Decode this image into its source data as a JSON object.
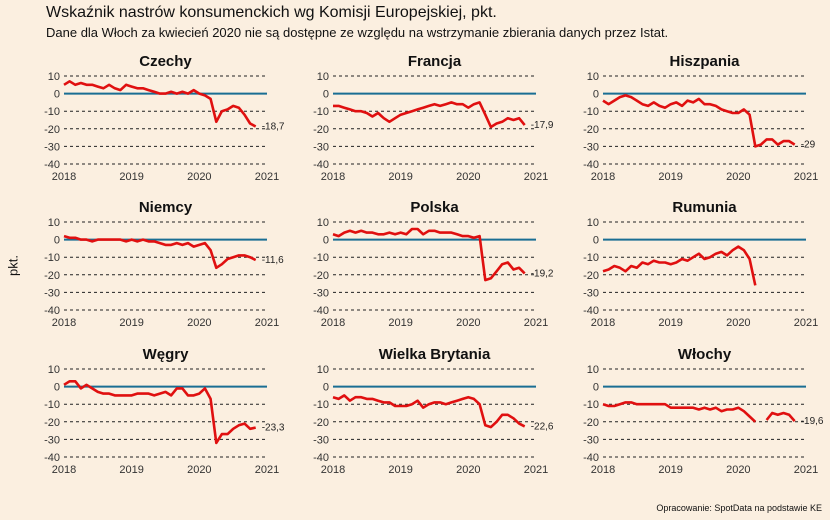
{
  "title": "Wskaźnik nastrów konsumenckich wg Komisji Europejskiej, pkt.",
  "subtitle": "Dane dla Włoch za kwiecień 2020 nie są dostępne ze względu na wstrzymanie zbierania danych przez Istat.",
  "ylabel": "pkt.",
  "source": "Opracowanie: SpotData na podstawie KE",
  "colors": {
    "line": "#e01010",
    "zero": "#1a6e93",
    "grid": "#222222",
    "background": "#fbefe0"
  },
  "chart_data": {
    "type": "line",
    "facets": "3x3",
    "xlim": [
      2018,
      2021
    ],
    "xticks": [
      "2018",
      "2019",
      "2020",
      "2021"
    ],
    "ylim": [
      -40,
      10
    ],
    "yticks": [
      "10",
      "0",
      "-10",
      "-20",
      "-30",
      "-40"
    ],
    "series": [
      {
        "name": "Czechy",
        "end_label": "-18,7",
        "x": [
          2018.0,
          2018.083,
          2018.167,
          2018.25,
          2018.333,
          2018.417,
          2018.5,
          2018.583,
          2018.667,
          2018.75,
          2018.833,
          2018.917,
          2019.0,
          2019.083,
          2019.167,
          2019.25,
          2019.333,
          2019.417,
          2019.5,
          2019.583,
          2019.667,
          2019.75,
          2019.833,
          2019.917,
          2020.0,
          2020.083,
          2020.167,
          2020.25,
          2020.333,
          2020.417,
          2020.5,
          2020.583,
          2020.667,
          2020.75,
          2020.833
        ],
        "values": [
          5,
          7,
          5,
          6,
          5,
          5,
          4,
          3,
          5,
          3,
          2,
          5,
          4,
          3,
          3,
          2,
          1,
          0,
          0,
          1,
          0,
          1,
          0,
          2,
          0,
          -1,
          -3,
          -16,
          -10,
          -9,
          -7,
          -8,
          -12,
          -17,
          -18.7
        ]
      },
      {
        "name": "Francja",
        "end_label": "-17,9",
        "x": [
          2018.0,
          2018.083,
          2018.167,
          2018.25,
          2018.333,
          2018.417,
          2018.5,
          2018.583,
          2018.667,
          2018.75,
          2018.833,
          2018.917,
          2019.0,
          2019.083,
          2019.167,
          2019.25,
          2019.333,
          2019.417,
          2019.5,
          2019.583,
          2019.667,
          2019.75,
          2019.833,
          2019.917,
          2020.0,
          2020.083,
          2020.167,
          2020.25,
          2020.333,
          2020.417,
          2020.5,
          2020.583,
          2020.667,
          2020.75,
          2020.833
        ],
        "values": [
          -7,
          -7,
          -8,
          -9,
          -10,
          -10,
          -11,
          -13,
          -11,
          -14,
          -16,
          -14,
          -12,
          -11,
          -10,
          -9,
          -8,
          -7,
          -6,
          -7,
          -6,
          -5,
          -6,
          -6,
          -8,
          -6,
          -5,
          -12,
          -19,
          -17,
          -16,
          -14,
          -15,
          -14,
          -17.9
        ]
      },
      {
        "name": "Hiszpania",
        "end_label": "-29",
        "x": [
          2018.0,
          2018.083,
          2018.167,
          2018.25,
          2018.333,
          2018.417,
          2018.5,
          2018.583,
          2018.667,
          2018.75,
          2018.833,
          2018.917,
          2019.0,
          2019.083,
          2019.167,
          2019.25,
          2019.333,
          2019.417,
          2019.5,
          2019.583,
          2019.667,
          2019.75,
          2019.833,
          2019.917,
          2020.0,
          2020.083,
          2020.167,
          2020.25,
          2020.333,
          2020.417,
          2020.5,
          2020.583,
          2020.667,
          2020.75,
          2020.833
        ],
        "values": [
          -4,
          -6,
          -4,
          -2,
          -1,
          -2,
          -4,
          -6,
          -7,
          -5,
          -7,
          -8,
          -6,
          -5,
          -7,
          -4,
          -5,
          -3,
          -6,
          -6,
          -7,
          -9,
          -10,
          -11,
          -11,
          -9,
          -12,
          -30,
          -29,
          -26,
          -26,
          -29,
          -27,
          -27,
          -29
        ]
      },
      {
        "name": "Niemcy",
        "end_label": "-11,6",
        "x": [
          2018.0,
          2018.083,
          2018.167,
          2018.25,
          2018.333,
          2018.417,
          2018.5,
          2018.583,
          2018.667,
          2018.75,
          2018.833,
          2018.917,
          2019.0,
          2019.083,
          2019.167,
          2019.25,
          2019.333,
          2019.417,
          2019.5,
          2019.583,
          2019.667,
          2019.75,
          2019.833,
          2019.917,
          2020.0,
          2020.083,
          2020.167,
          2020.25,
          2020.333,
          2020.417,
          2020.5,
          2020.583,
          2020.667,
          2020.75,
          2020.833
        ],
        "values": [
          2,
          1,
          1,
          0,
          0,
          -1,
          0,
          0,
          0,
          0,
          0,
          -1,
          0,
          -1,
          0,
          -1,
          -1,
          -2,
          -3,
          -3,
          -2,
          -3,
          -2,
          -4,
          -3,
          -2,
          -6,
          -16,
          -14,
          -11,
          -10,
          -9,
          -9,
          -10,
          -11.6
        ]
      },
      {
        "name": "Polska",
        "end_label": "-19,2",
        "x": [
          2018.0,
          2018.083,
          2018.167,
          2018.25,
          2018.333,
          2018.417,
          2018.5,
          2018.583,
          2018.667,
          2018.75,
          2018.833,
          2018.917,
          2019.0,
          2019.083,
          2019.167,
          2019.25,
          2019.333,
          2019.417,
          2019.5,
          2019.583,
          2019.667,
          2019.75,
          2019.833,
          2019.917,
          2020.0,
          2020.083,
          2020.167,
          2020.25,
          2020.333,
          2020.417,
          2020.5,
          2020.583,
          2020.667,
          2020.75,
          2020.833
        ],
        "values": [
          3,
          2,
          4,
          5,
          4,
          5,
          4,
          4,
          3,
          3,
          4,
          3,
          4,
          3,
          6,
          6,
          3,
          5,
          5,
          4,
          4,
          4,
          3,
          2,
          2,
          1,
          2,
          -23,
          -22,
          -18,
          -14,
          -13,
          -17,
          -16,
          -19.2
        ]
      },
      {
        "name": "Rumunia",
        "end_label": "",
        "x": [
          2018.0,
          2018.083,
          2018.167,
          2018.25,
          2018.333,
          2018.417,
          2018.5,
          2018.583,
          2018.667,
          2018.75,
          2018.833,
          2018.917,
          2019.0,
          2019.083,
          2019.167,
          2019.25,
          2019.333,
          2019.417,
          2019.5,
          2019.583,
          2019.667,
          2019.75,
          2019.833,
          2019.917,
          2020.0,
          2020.083,
          2020.167,
          2020.25
        ],
        "values": [
          -18,
          -17,
          -15,
          -16,
          -18,
          -15,
          -16,
          -13,
          -14,
          -12,
          -13,
          -13,
          -14,
          -13,
          -11,
          -12,
          -10,
          -8,
          -11,
          -10,
          -8,
          -7,
          -9,
          -6,
          -4,
          -6,
          -11,
          -26
        ]
      },
      {
        "name": "Węgry",
        "end_label": "-23,3",
        "x": [
          2018.0,
          2018.083,
          2018.167,
          2018.25,
          2018.333,
          2018.417,
          2018.5,
          2018.583,
          2018.667,
          2018.75,
          2018.833,
          2018.917,
          2019.0,
          2019.083,
          2019.167,
          2019.25,
          2019.333,
          2019.417,
          2019.5,
          2019.583,
          2019.667,
          2019.75,
          2019.833,
          2019.917,
          2020.0,
          2020.083,
          2020.167,
          2020.25,
          2020.333,
          2020.417,
          2020.5,
          2020.583,
          2020.667,
          2020.75,
          2020.833
        ],
        "values": [
          1,
          3,
          3,
          -1,
          1,
          -1,
          -3,
          -4,
          -4,
          -5,
          -5,
          -5,
          -5,
          -4,
          -4,
          -4,
          -5,
          -4,
          -3,
          -5,
          -1,
          -1,
          -5,
          -5,
          -4,
          -1,
          -7,
          -32,
          -27,
          -27,
          -24,
          -22,
          -21,
          -24,
          -23.3
        ]
      },
      {
        "name": "Wielka Brytania",
        "end_label": "-22,6",
        "x": [
          2018.0,
          2018.083,
          2018.167,
          2018.25,
          2018.333,
          2018.417,
          2018.5,
          2018.583,
          2018.667,
          2018.75,
          2018.833,
          2018.917,
          2019.0,
          2019.083,
          2019.167,
          2019.25,
          2019.333,
          2019.417,
          2019.5,
          2019.583,
          2019.667,
          2019.75,
          2019.833,
          2019.917,
          2020.0,
          2020.083,
          2020.167,
          2020.25,
          2020.333,
          2020.417,
          2020.5,
          2020.583,
          2020.667,
          2020.75,
          2020.833
        ],
        "values": [
          -6,
          -7,
          -5,
          -8,
          -6,
          -6,
          -7,
          -7,
          -8,
          -9,
          -9,
          -11,
          -11,
          -11,
          -10,
          -8,
          -12,
          -10,
          -9,
          -9,
          -10,
          -9,
          -8,
          -7,
          -6,
          -7,
          -10,
          -22,
          -23,
          -20,
          -16,
          -16,
          -18,
          -21,
          -22.6
        ]
      },
      {
        "name": "Włochy",
        "end_label": "-19,6",
        "x": [
          2018.0,
          2018.083,
          2018.167,
          2018.25,
          2018.333,
          2018.417,
          2018.5,
          2018.583,
          2018.667,
          2018.75,
          2018.833,
          2018.917,
          2019.0,
          2019.083,
          2019.167,
          2019.25,
          2019.333,
          2019.417,
          2019.5,
          2019.583,
          2019.667,
          2019.75,
          2019.833,
          2019.917,
          2020.0,
          2020.083,
          2020.167,
          2020.25,
          null,
          2020.417,
          2020.5,
          2020.583,
          2020.667,
          2020.75,
          2020.833
        ],
        "values": [
          -10,
          -11,
          -11,
          -10,
          -9,
          -9,
          -10,
          -10,
          -10,
          -10,
          -10,
          -10,
          -12,
          -12,
          -12,
          -12,
          -12,
          -13,
          -12,
          -13,
          -12,
          -14,
          -13,
          -13,
          -12,
          -14,
          -17,
          -20,
          null,
          -19,
          -15,
          -16,
          -15,
          -16,
          -19.6
        ]
      }
    ]
  }
}
